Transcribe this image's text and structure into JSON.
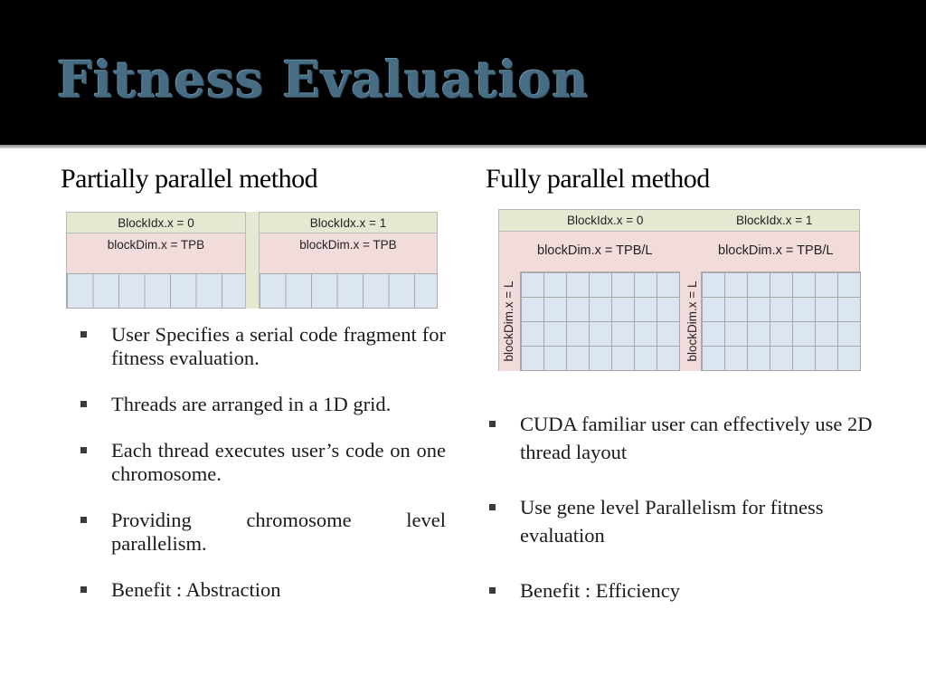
{
  "slide": {
    "title": "Fitness Evaluation"
  },
  "left": {
    "heading": "Partially parallel method",
    "diagram": {
      "block0_label": "BlockIdx.x = 0",
      "block1_label": "BlockIdx.x = 1",
      "block0_dim": "blockDim.x = TPB",
      "block1_dim": "blockDim.x = TPB"
    },
    "bullets": [
      "User Specifies a serial code fragment for fitness evaluation.",
      "Threads are arranged in a 1D grid.",
      "Each thread executes user’s code on one chromosome.",
      "Providing chromosome level parallelism.",
      "Benefit : Abstraction"
    ]
  },
  "right": {
    "heading": "Fully parallel method",
    "diagram": {
      "block0_label": "BlockIdx.x = 0",
      "block1_label": "BlockIdx.x = 1",
      "block0_dim": "blockDim.x = TPB/L",
      "block1_dim": "blockDim.x = TPB/L",
      "block0_ydim": "blockDim.x = L",
      "block1_ydim": "blockDim.x = L"
    },
    "bullets": [
      "CUDA familiar user can effectively use 2D thread layout",
      "Use gene level Parallelism for fitness evaluation",
      "Benefit : Efficiency"
    ]
  },
  "colors": {
    "title_text": "#466d84",
    "title_background": "#000000",
    "block_label_fill": "#e4ead2",
    "block_dim_fill": "#f2dcdb",
    "thread_cell_fill": "#dce6f2"
  }
}
